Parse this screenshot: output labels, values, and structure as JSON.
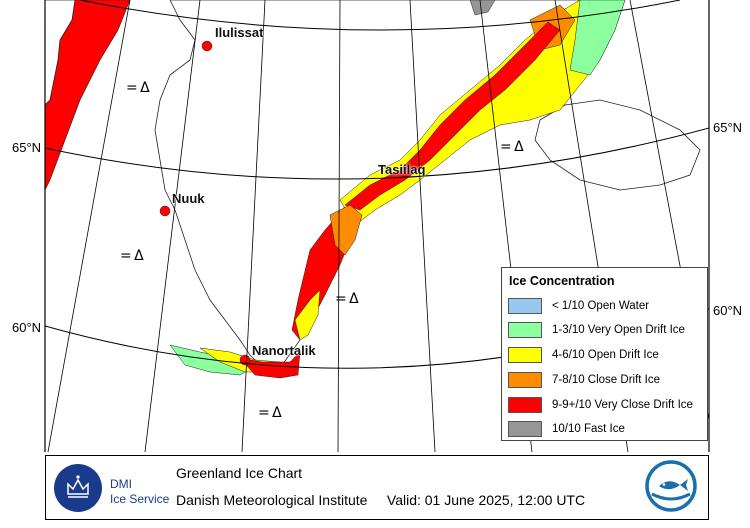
{
  "map": {
    "latitude_labels": {
      "left_65": "65°N",
      "left_60": "60°N",
      "right_65": "65°N",
      "right_60": "60°N"
    },
    "places": [
      "Ilulissat",
      "Nuuk",
      "Tasiilaq",
      "Nanortalik"
    ],
    "symbol": "= Δ"
  },
  "legend": {
    "title": "Ice Concentration",
    "items": [
      {
        "label": "< 1/10 Open Water",
        "color": "#96c8f0"
      },
      {
        "label": "1-3/10 Very Open Drift Ice",
        "color": "#8cff9f"
      },
      {
        "label": "4-6/10 Open Drift Ice",
        "color": "#ffff00"
      },
      {
        "label": "7-8/10 Close Drift Ice",
        "color": "#ff8c00"
      },
      {
        "label": "9-9+/10 Very Close Drift Ice",
        "color": "#ff0000"
      },
      {
        "label": "10/10 Fast Ice",
        "color": "#969696"
      }
    ]
  },
  "footer": {
    "logo_name": "DMI",
    "logo_sub": "Ice Service",
    "title": "Greenland Ice Chart",
    "source": "Danish Meteorological Institute",
    "valid": "Valid: 01 June 2025, 12:00 UTC"
  }
}
